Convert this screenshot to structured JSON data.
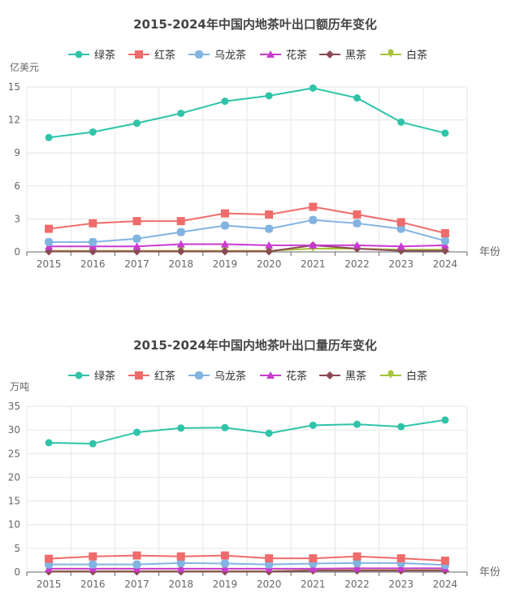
{
  "chart_data": [
    {
      "type": "line",
      "title": "2015-2024年中国内地茶叶出口额历年变化",
      "ylabel": "亿美元",
      "xlabel": "年份",
      "ylim": [
        0,
        15
      ],
      "yticks": [
        0,
        3,
        6,
        9,
        12,
        15
      ],
      "grid": true,
      "legend": "top",
      "categories": [
        "2015",
        "2016",
        "2017",
        "2018",
        "2019",
        "2020",
        "2021",
        "2022",
        "2023",
        "2024"
      ],
      "series": [
        {
          "name": "绿茶",
          "color": "#2ec4a9",
          "marker": "circle",
          "values": [
            10.4,
            10.9,
            11.7,
            12.6,
            13.7,
            14.2,
            14.9,
            14.0,
            11.8,
            10.8
          ]
        },
        {
          "name": "红茶",
          "color": "#f06b6b",
          "marker": "square",
          "values": [
            2.1,
            2.6,
            2.8,
            2.8,
            3.5,
            3.4,
            4.1,
            3.4,
            2.7,
            1.7
          ]
        },
        {
          "name": "乌龙茶",
          "color": "#82b4e2",
          "marker": "roundrect",
          "values": [
            0.9,
            0.9,
            1.2,
            1.8,
            2.4,
            2.1,
            2.9,
            2.6,
            2.1,
            1.0
          ]
        },
        {
          "name": "花茶",
          "color": "#c93ad1",
          "marker": "triangle",
          "values": [
            0.5,
            0.5,
            0.5,
            0.7,
            0.7,
            0.6,
            0.6,
            0.6,
            0.5,
            0.6
          ]
        },
        {
          "name": "黑茶",
          "color": "#8a4a55",
          "marker": "diamond",
          "values": [
            0.05,
            0.05,
            0.05,
            0.05,
            0.05,
            0.05,
            0.6,
            0.3,
            0.1,
            0.1
          ]
        },
        {
          "name": "白茶",
          "color": "#a6c436",
          "marker": "pin",
          "values": [
            0.1,
            0.1,
            0.1,
            0.1,
            0.1,
            0.1,
            0.3,
            0.3,
            0.2,
            0.2
          ]
        }
      ]
    },
    {
      "type": "line",
      "title": "2015-2024年中国内地茶叶出口量历年变化",
      "ylabel": "万吨",
      "xlabel": "年份",
      "ylim": [
        0,
        35
      ],
      "yticks": [
        0,
        5,
        10,
        15,
        20,
        25,
        30,
        35
      ],
      "grid": true,
      "legend": "top",
      "categories": [
        "2015",
        "2016",
        "2017",
        "2018",
        "2019",
        "2020",
        "2021",
        "2022",
        "2023",
        "2024"
      ],
      "series": [
        {
          "name": "绿茶",
          "color": "#2ec4a9",
          "marker": "circle",
          "values": [
            27.3,
            27.1,
            29.5,
            30.4,
            30.5,
            29.3,
            31.0,
            31.2,
            30.7,
            32.1
          ]
        },
        {
          "name": "红茶",
          "color": "#f06b6b",
          "marker": "square",
          "values": [
            2.8,
            3.3,
            3.5,
            3.3,
            3.5,
            2.9,
            2.9,
            3.3,
            2.9,
            2.4
          ]
        },
        {
          "name": "乌龙茶",
          "color": "#82b4e2",
          "marker": "roundrect",
          "values": [
            1.6,
            1.6,
            1.6,
            1.9,
            1.8,
            1.6,
            1.8,
            1.9,
            1.9,
            1.5
          ]
        },
        {
          "name": "花茶",
          "color": "#c93ad1",
          "marker": "triangle",
          "values": [
            0.7,
            0.7,
            0.7,
            0.7,
            0.7,
            0.7,
            0.7,
            0.8,
            0.8,
            0.8
          ]
        },
        {
          "name": "黑茶",
          "color": "#8a4a55",
          "marker": "diamond",
          "values": [
            0.1,
            0.1,
            0.1,
            0.1,
            0.1,
            0.1,
            0.3,
            0.3,
            0.3,
            0.3
          ]
        },
        {
          "name": "白茶",
          "color": "#a6c436",
          "marker": "pin",
          "values": [
            0.2,
            0.2,
            0.2,
            0.2,
            0.2,
            0.2,
            0.4,
            0.4,
            0.4,
            0.4
          ]
        }
      ]
    }
  ]
}
